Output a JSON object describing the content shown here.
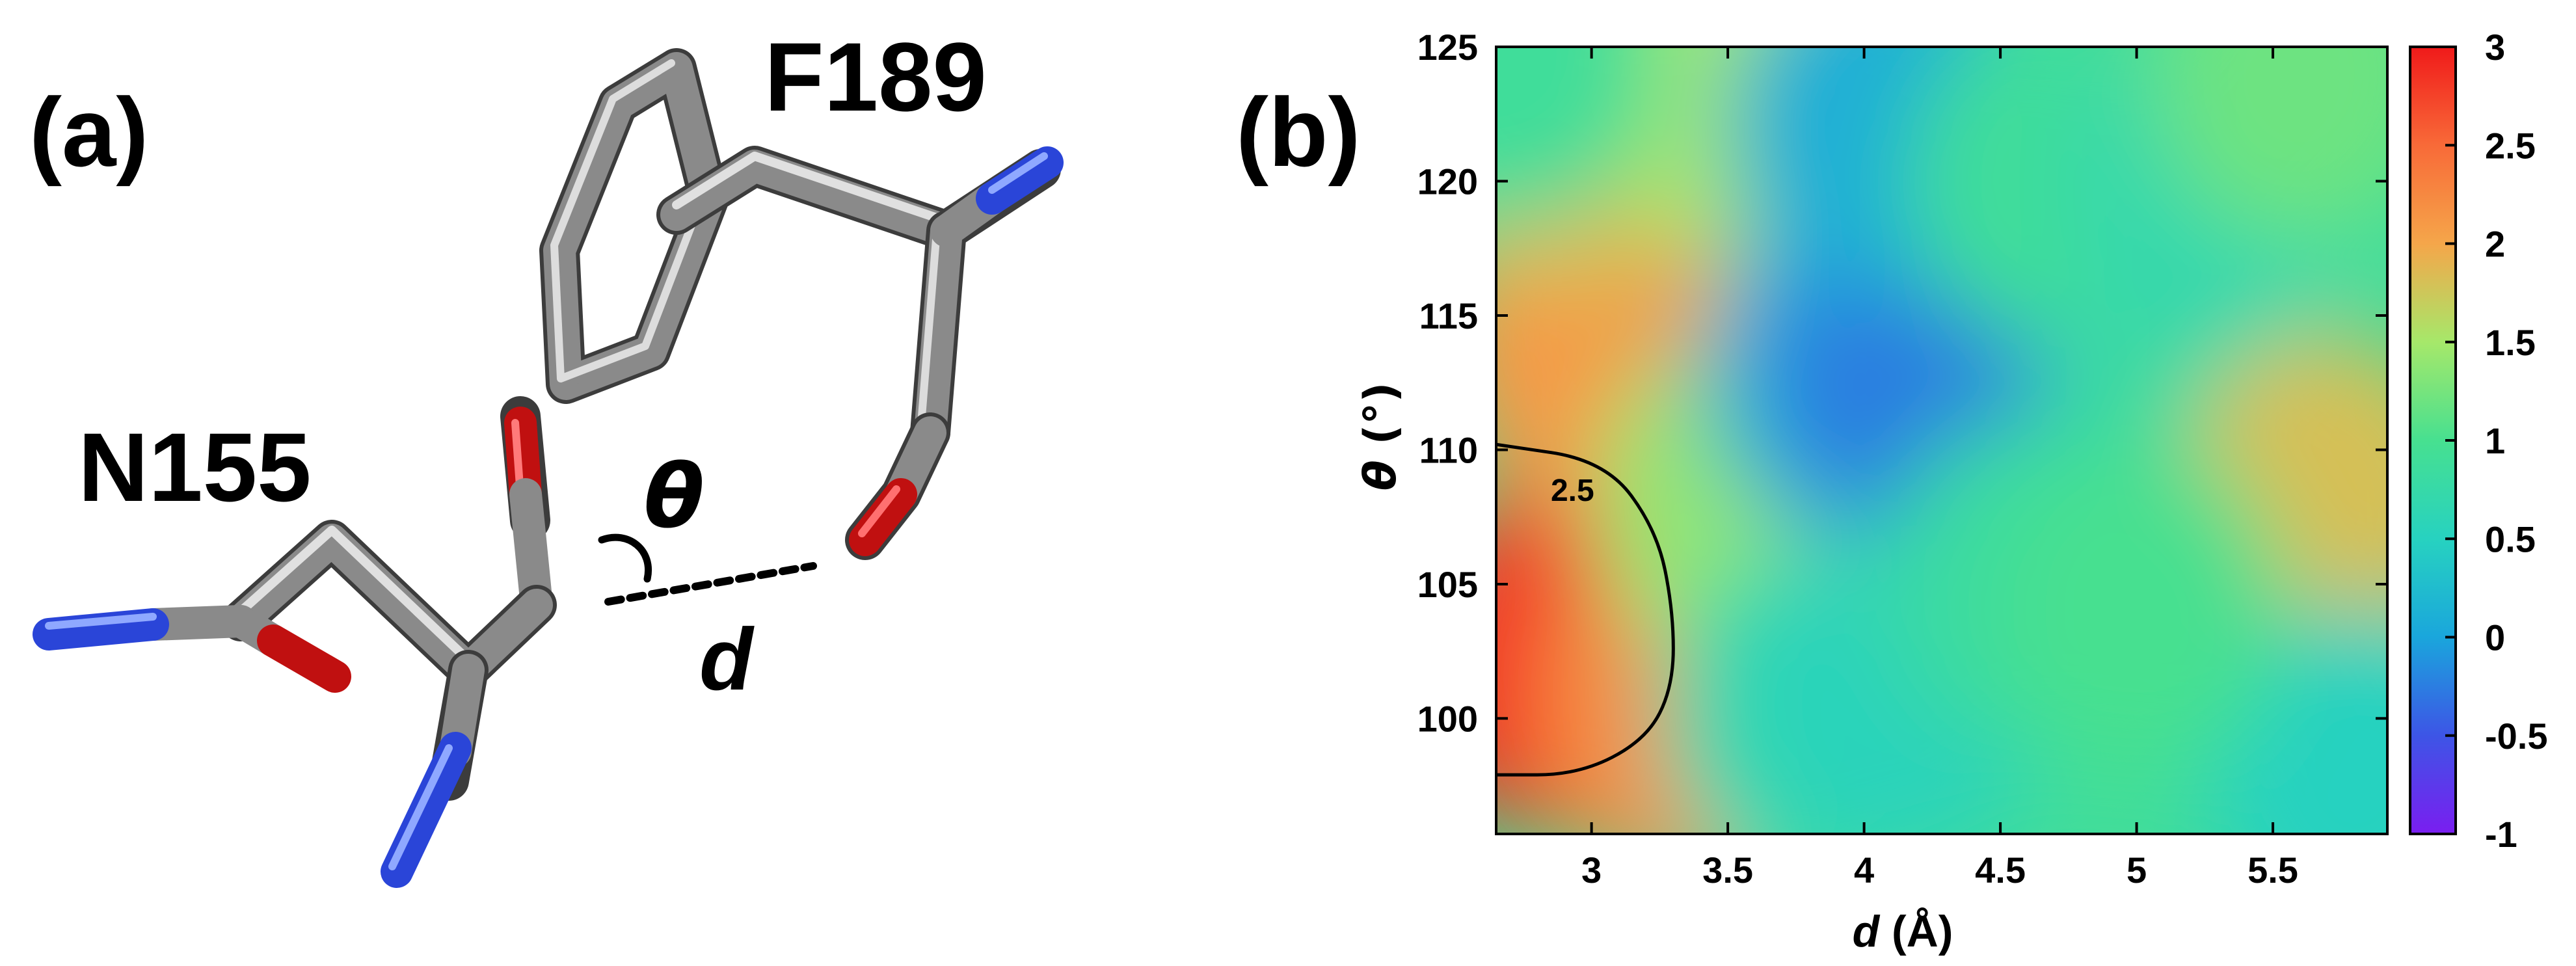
{
  "panel_a": {
    "label": "(a)",
    "residue_top": "F189",
    "residue_left": "N155",
    "angle_label": "θ",
    "distance_label": "d",
    "colors": {
      "carbon": "#8c8c8c",
      "oxygen": "#e01010",
      "nitrogen": "#2244dd"
    }
  },
  "panel_b": {
    "label": "(b)",
    "contour_label": "2.5"
  },
  "chart_data": {
    "type": "heatmap",
    "xlabel_symbol": "d",
    "xlabel_unit": "(Å)",
    "ylabel_symbol": "θ",
    "ylabel_unit": "(°)",
    "xlim": [
      2.65,
      5.92
    ],
    "ylim": [
      95.7,
      125
    ],
    "x_ticks": [
      3,
      3.5,
      4,
      4.5,
      5,
      5.5
    ],
    "x_tick_labels": [
      "3",
      "3.5",
      "4",
      "4.5",
      "5",
      "5.5"
    ],
    "y_ticks": [
      100,
      105,
      110,
      115,
      120,
      125
    ],
    "y_tick_labels": [
      "100",
      "105",
      "110",
      "115",
      "120",
      "125"
    ],
    "colorbar": {
      "min": -1,
      "max": 3,
      "ticks": [
        -1,
        -0.5,
        0,
        0.5,
        1,
        1.5,
        2,
        2.5,
        3
      ],
      "tick_labels": [
        "-1",
        "-0.5",
        "0",
        "0.5",
        "1",
        "1.5",
        "2",
        "2.5",
        "3"
      ],
      "colormap": [
        "#7a1ef0",
        "#3d55e6",
        "#1aa6dc",
        "#27d2c0",
        "#47e090",
        "#a6e86a",
        "#f5a64a",
        "#f86a38",
        "#f01a1a"
      ]
    },
    "regions": [
      {
        "x": 2.85,
        "y": 102,
        "value": 2.9
      },
      {
        "x": 3.1,
        "y": 105,
        "value": 2.75
      },
      {
        "x": 3.0,
        "y": 114,
        "value": 2.1
      },
      {
        "x": 2.9,
        "y": 122,
        "value": 1.8
      },
      {
        "x": 3.35,
        "y": 100,
        "value": 2.2
      },
      {
        "x": 3.55,
        "y": 108,
        "value": 1.4
      },
      {
        "x": 3.6,
        "y": 123,
        "value": 1.5
      },
      {
        "x": 3.8,
        "y": 100,
        "value": 0.7
      },
      {
        "x": 3.95,
        "y": 113,
        "value": 0.15
      },
      {
        "x": 4.2,
        "y": 113,
        "value": -0.25
      },
      {
        "x": 4.05,
        "y": 122,
        "value": 0.1
      },
      {
        "x": 4.15,
        "y": 101,
        "value": 0.55
      },
      {
        "x": 4.6,
        "y": 105,
        "value": 0.8
      },
      {
        "x": 4.7,
        "y": 120,
        "value": 0.9
      },
      {
        "x": 5.2,
        "y": 112,
        "value": 0.8
      },
      {
        "x": 5.3,
        "y": 120,
        "value": 0.7
      },
      {
        "x": 5.7,
        "y": 108,
        "value": 1.8
      },
      {
        "x": 5.8,
        "y": 98,
        "value": 0.5
      },
      {
        "x": 5.6,
        "y": 124,
        "value": 1.2
      },
      {
        "x": 5.0,
        "y": 104,
        "value": 1.0
      },
      {
        "x": 2.7,
        "y": 124.5,
        "value": 0.9
      }
    ],
    "contour": {
      "level": 2.5,
      "points": [
        [
          2.65,
          110.2
        ],
        [
          3.05,
          109.6
        ],
        [
          3.24,
          107.0
        ],
        [
          3.3,
          104.0
        ],
        [
          3.3,
          101.2
        ],
        [
          3.2,
          99.2
        ],
        [
          2.95,
          97.9
        ],
        [
          2.65,
          97.9
        ]
      ]
    }
  }
}
